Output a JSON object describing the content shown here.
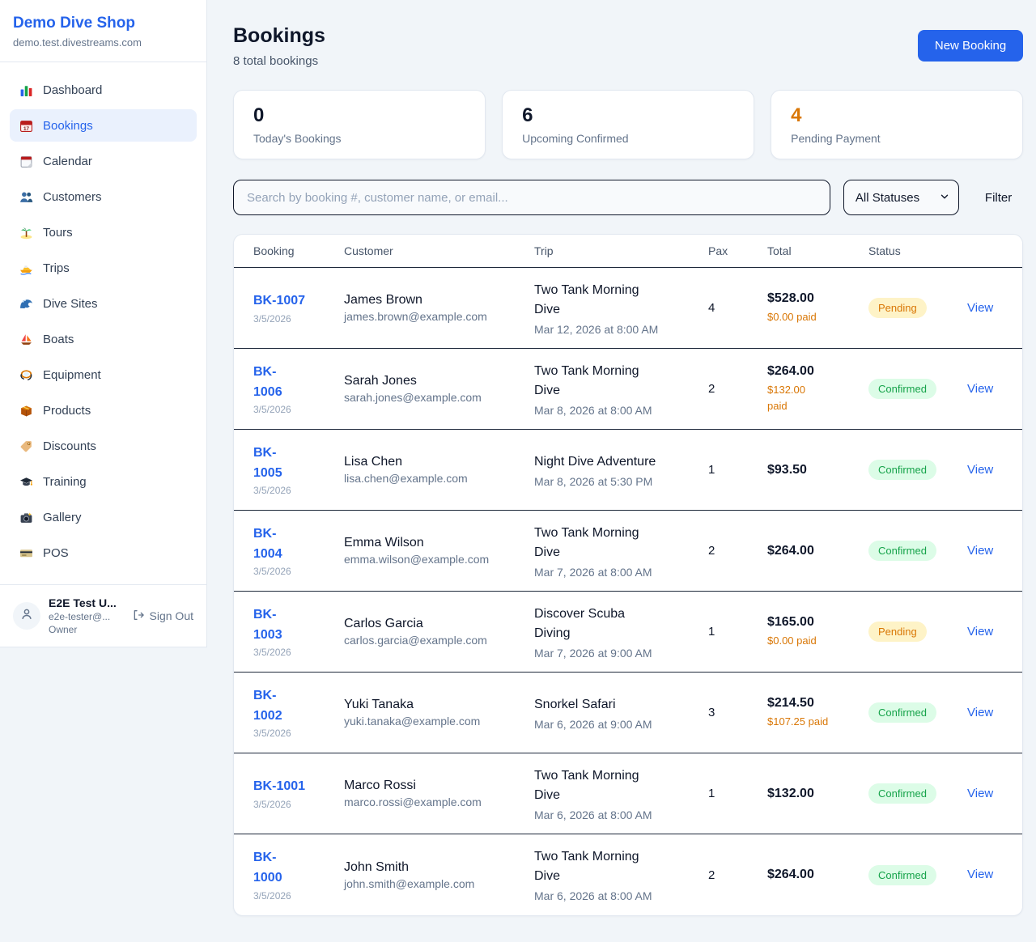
{
  "sidebar": {
    "shop_name": "Demo Dive Shop",
    "domain": "demo.test.divestreams.com",
    "items": [
      {
        "label": "Dashboard",
        "icon": "dashboard-icon",
        "active": false
      },
      {
        "label": "Bookings",
        "icon": "bookings-icon",
        "active": true
      },
      {
        "label": "Calendar",
        "icon": "calendar-icon",
        "active": false
      },
      {
        "label": "Customers",
        "icon": "customers-icon",
        "active": false
      },
      {
        "label": "Tours",
        "icon": "tours-icon",
        "active": false
      },
      {
        "label": "Trips",
        "icon": "trips-icon",
        "active": false
      },
      {
        "label": "Dive Sites",
        "icon": "dive-sites-icon",
        "active": false
      },
      {
        "label": "Boats",
        "icon": "boats-icon",
        "active": false
      },
      {
        "label": "Equipment",
        "icon": "equipment-icon",
        "active": false
      },
      {
        "label": "Products",
        "icon": "products-icon",
        "active": false
      },
      {
        "label": "Discounts",
        "icon": "discounts-icon",
        "active": false
      },
      {
        "label": "Training",
        "icon": "training-icon",
        "active": false
      },
      {
        "label": "Gallery",
        "icon": "gallery-icon",
        "active": false
      },
      {
        "label": "POS",
        "icon": "pos-icon",
        "active": false
      }
    ],
    "user": {
      "name": "E2E Test U...",
      "email": "e2e-tester@...",
      "role": "Owner",
      "sign_out_label": "Sign Out"
    }
  },
  "header": {
    "title": "Bookings",
    "subtitle": "8 total bookings",
    "new_booking_label": "New Booking"
  },
  "stats": [
    {
      "value": "0",
      "label": "Today's Bookings",
      "color": "#0f172a"
    },
    {
      "value": "6",
      "label": "Upcoming Confirmed",
      "color": "#0f172a"
    },
    {
      "value": "4",
      "label": "Pending Payment",
      "color": "#d97706"
    }
  ],
  "filters": {
    "search_placeholder": "Search by booking #, customer name, or email...",
    "status_selected": "All Statuses",
    "filter_label": "Filter"
  },
  "table": {
    "columns": [
      "Booking",
      "Customer",
      "Trip",
      "Pax",
      "Total",
      "Status"
    ],
    "view_label": "View",
    "rows": [
      {
        "id": "BK-1007",
        "date": "3/5/2026",
        "customer": "James Brown",
        "email": "james.brown@example.com",
        "trip": "Two Tank Morning\nDive",
        "trip_date": "Mar 12, 2026 at 8:00 AM",
        "pax": "4",
        "total": "$528.00",
        "paid": "$0.00 paid",
        "status": "Pending"
      },
      {
        "id": "BK-\n1006",
        "date": "3/5/2026",
        "customer": "Sarah Jones",
        "email": "sarah.jones@example.com",
        "trip": "Two Tank Morning\nDive",
        "trip_date": "Mar 8, 2026 at 8:00 AM",
        "pax": "2",
        "total": "$264.00",
        "paid": "$132.00\npaid",
        "status": "Confirmed"
      },
      {
        "id": "BK-\n1005",
        "date": "3/5/2026",
        "customer": "Lisa Chen",
        "email": "lisa.chen@example.com",
        "trip": "Night Dive Adventure",
        "trip_date": "Mar 8, 2026 at 5:30 PM",
        "pax": "1",
        "total": "$93.50",
        "paid": null,
        "status": "Confirmed"
      },
      {
        "id": "BK-\n1004",
        "date": "3/5/2026",
        "customer": "Emma Wilson",
        "email": "emma.wilson@example.com",
        "trip": "Two Tank Morning\nDive",
        "trip_date": "Mar 7, 2026 at 8:00 AM",
        "pax": "2",
        "total": "$264.00",
        "paid": null,
        "status": "Confirmed"
      },
      {
        "id": "BK-\n1003",
        "date": "3/5/2026",
        "customer": "Carlos Garcia",
        "email": "carlos.garcia@example.com",
        "trip": "Discover Scuba\nDiving",
        "trip_date": "Mar 7, 2026 at 9:00 AM",
        "pax": "1",
        "total": "$165.00",
        "paid": "$0.00 paid",
        "status": "Pending"
      },
      {
        "id": "BK-\n1002",
        "date": "3/5/2026",
        "customer": "Yuki Tanaka",
        "email": "yuki.tanaka@example.com",
        "trip": "Snorkel Safari",
        "trip_date": "Mar 6, 2026 at 9:00 AM",
        "pax": "3",
        "total": "$214.50",
        "paid": "$107.25 paid",
        "status": "Confirmed"
      },
      {
        "id": "BK-1001",
        "date": "3/5/2026",
        "customer": "Marco Rossi",
        "email": "marco.rossi@example.com",
        "trip": "Two Tank Morning\nDive",
        "trip_date": "Mar 6, 2026 at 8:00 AM",
        "pax": "1",
        "total": "$132.00",
        "paid": null,
        "status": "Confirmed"
      },
      {
        "id": "BK-\n1000",
        "date": "3/5/2026",
        "customer": "John Smith",
        "email": "john.smith@example.com",
        "trip": "Two Tank Morning\nDive",
        "trip_date": "Mar 6, 2026 at 8:00 AM",
        "pax": "2",
        "total": "$264.00",
        "paid": null,
        "status": "Confirmed"
      }
    ]
  },
  "colors": {
    "accent_blue": "#2563eb",
    "pending_orange": "#d97706",
    "confirmed_green": "#16a34a",
    "page_background": "#f1f5f9"
  }
}
